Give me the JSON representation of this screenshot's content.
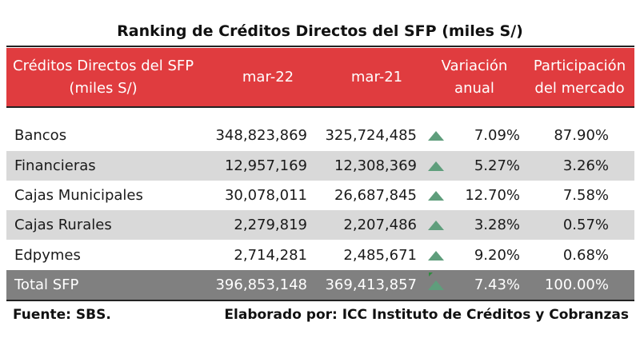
{
  "title": "Ranking de Créditos Directos del SFP (miles S/)",
  "header": {
    "col_name_line1": "Créditos Directos del SFP",
    "col_name_line2": "(miles S/)",
    "col_mar22": "mar-22",
    "col_mar21": "mar-21",
    "col_var_line1": "Variación",
    "col_var_line2": "anual",
    "col_part_line1": "Participación",
    "col_part_line2": "del mercado"
  },
  "rows": [
    {
      "name": "Bancos",
      "mar22": "348,823,869",
      "mar21": "325,724,485",
      "trend": "up",
      "variacion": "7.09%",
      "participacion": "87.90%"
    },
    {
      "name": "Financieras",
      "mar22": "12,957,169",
      "mar21": "12,308,369",
      "trend": "up",
      "variacion": "5.27%",
      "participacion": "3.26%"
    },
    {
      "name": "Cajas Municipales",
      "mar22": "30,078,011",
      "mar21": "26,687,845",
      "trend": "up",
      "variacion": "12.70%",
      "participacion": "7.58%"
    },
    {
      "name": "Cajas Rurales",
      "mar22": "2,279,819",
      "mar21": "2,207,486",
      "trend": "up",
      "variacion": "3.28%",
      "participacion": "0.57%"
    },
    {
      "name": "Edpymes",
      "mar22": "2,714,281",
      "mar21": "2,485,671",
      "trend": "up",
      "variacion": "9.20%",
      "participacion": "0.68%"
    },
    {
      "name": "Total SFP",
      "mar22": "396,853,148",
      "mar21": "369,413,857",
      "trend": "up",
      "variacion": "7.43%",
      "participacion": "100.00%"
    }
  ],
  "footer": {
    "source": "Fuente: SBS.",
    "credit": "Elaborado por: ICC Instituto de Créditos y Cobranzas"
  },
  "colors": {
    "header_bg": "#e03c3f",
    "shade_bg": "#d9d9d9",
    "total_bg": "#808080",
    "arrow_up": "#5f9e7c"
  }
}
